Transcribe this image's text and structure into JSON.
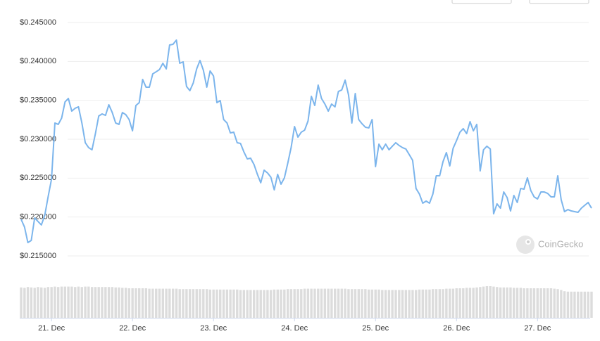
{
  "chart_data": {
    "type": "line",
    "watermark": "CoinGecko",
    "color": "#7cb5ec",
    "volume_color": "#dcdcdc",
    "grid": true,
    "xlim": [
      20.625,
      27.667
    ],
    "xticks": [
      {
        "value": 21,
        "label": "21. Dec"
      },
      {
        "value": 22,
        "label": "22. Dec"
      },
      {
        "value": 23,
        "label": "23. Dec"
      },
      {
        "value": 24,
        "label": "24. Dec"
      },
      {
        "value": 25,
        "label": "25. Dec"
      },
      {
        "value": 26,
        "label": "26. Dec"
      },
      {
        "value": 27,
        "label": "27. Dec"
      }
    ],
    "ylim": [
      0.215,
      0.245
    ],
    "yticks": [
      {
        "value": 0.245,
        "label": "$0.245000"
      },
      {
        "value": 0.24,
        "label": "$0.240000"
      },
      {
        "value": 0.235,
        "label": "$0.235000"
      },
      {
        "value": 0.23,
        "label": "$0.230000"
      },
      {
        "value": 0.225,
        "label": "$0.225000"
      },
      {
        "value": 0.22,
        "label": "$0.220000"
      },
      {
        "value": 0.215,
        "label": "$0.215000"
      }
    ],
    "x": [
      20.625,
      20.667,
      20.708,
      20.75,
      20.792,
      20.833,
      20.875,
      20.917,
      20.958,
      21,
      21.042,
      21.083,
      21.125,
      21.167,
      21.208,
      21.25,
      21.292,
      21.333,
      21.375,
      21.417,
      21.458,
      21.5,
      21.542,
      21.583,
      21.625,
      21.667,
      21.708,
      21.75,
      21.792,
      21.833,
      21.875,
      21.917,
      21.958,
      22,
      22.042,
      22.083,
      22.125,
      22.167,
      22.208,
      22.25,
      22.292,
      22.333,
      22.375,
      22.417,
      22.458,
      22.5,
      22.542,
      22.583,
      22.625,
      22.667,
      22.708,
      22.75,
      22.792,
      22.833,
      22.875,
      22.917,
      22.958,
      23,
      23.042,
      23.083,
      23.125,
      23.167,
      23.208,
      23.25,
      23.292,
      23.333,
      23.375,
      23.417,
      23.458,
      23.5,
      23.542,
      23.583,
      23.625,
      23.667,
      23.708,
      23.75,
      23.792,
      23.833,
      23.875,
      23.917,
      23.958,
      24,
      24.042,
      24.083,
      24.125,
      24.167,
      24.208,
      24.25,
      24.292,
      24.333,
      24.375,
      24.417,
      24.458,
      24.5,
      24.542,
      24.583,
      24.625,
      24.667,
      24.708,
      24.75,
      24.792,
      24.833,
      24.875,
      24.917,
      24.958,
      25,
      25.042,
      25.083,
      25.125,
      25.167,
      25.208,
      25.25,
      25.292,
      25.333,
      25.375,
      25.417,
      25.458,
      25.5,
      25.542,
      25.583,
      25.625,
      25.667,
      25.708,
      25.75,
      25.792,
      25.833,
      25.875,
      25.917,
      25.958,
      26,
      26.042,
      26.083,
      26.125,
      26.167,
      26.208,
      26.25,
      26.292,
      26.333,
      26.375,
      26.417,
      26.458,
      26.5,
      26.542,
      26.583,
      26.625,
      26.667,
      26.708,
      26.75,
      26.792,
      26.833,
      26.875,
      26.917,
      26.958,
      27,
      27.042,
      27.083,
      27.125,
      27.167,
      27.208,
      27.25,
      27.292,
      27.333,
      27.375,
      27.417,
      27.458,
      27.5,
      27.542,
      27.583,
      27.625,
      27.667
    ],
    "values": [
      0.2197,
      0.21871,
      0.21672,
      0.21699,
      0.21988,
      0.21943,
      0.21898,
      0.22024,
      0.22259,
      0.22485,
      0.23208,
      0.2319,
      0.23271,
      0.23479,
      0.23524,
      0.23361,
      0.23398,
      0.23416,
      0.23208,
      0.22955,
      0.22892,
      0.22864,
      0.23072,
      0.23298,
      0.23325,
      0.23307,
      0.23443,
      0.23343,
      0.23208,
      0.2319,
      0.23343,
      0.23316,
      0.23253,
      0.23108,
      0.23434,
      0.2347,
      0.23768,
      0.23669,
      0.23669,
      0.2384,
      0.23867,
      0.23895,
      0.23976,
      0.23904,
      0.24211,
      0.2422,
      0.24274,
      0.23976,
      0.23994,
      0.23678,
      0.23624,
      0.23723,
      0.23904,
      0.24012,
      0.23886,
      0.23669,
      0.23877,
      0.23813,
      0.2347,
      0.23497,
      0.23253,
      0.23208,
      0.23081,
      0.2309,
      0.22955,
      0.22946,
      0.22837,
      0.22747,
      0.22756,
      0.22675,
      0.22548,
      0.2244,
      0.22602,
      0.22566,
      0.22512,
      0.22349,
      0.22548,
      0.22422,
      0.22503,
      0.22693,
      0.22892,
      0.23163,
      0.23027,
      0.2309,
      0.23117,
      0.23235,
      0.23551,
      0.23434,
      0.23696,
      0.23524,
      0.23452,
      0.23361,
      0.23452,
      0.23416,
      0.23614,
      0.23633,
      0.23759,
      0.23569,
      0.23208,
      0.23587,
      0.23253,
      0.23199,
      0.23154,
      0.23145,
      0.23253,
      0.22648,
      0.22937,
      0.22864,
      0.22937,
      0.22864,
      0.2291,
      0.22955,
      0.22919,
      0.22892,
      0.22874,
      0.22801,
      0.22729,
      0.22367,
      0.22295,
      0.22178,
      0.22205,
      0.22178,
      0.22295,
      0.2253,
      0.2253,
      0.22711,
      0.22828,
      0.22657,
      0.22883,
      0.22982,
      0.2309,
      0.23136,
      0.23072,
      0.23226,
      0.23108,
      0.2319,
      0.22593,
      0.22864,
      0.2291,
      0.22874,
      0.22042,
      0.22169,
      0.22114,
      0.22322,
      0.2225,
      0.22078,
      0.22277,
      0.22187,
      0.22367,
      0.22358,
      0.22503,
      0.2234,
      0.22259,
      0.22232,
      0.22322,
      0.22322,
      0.22304,
      0.22259,
      0.22259,
      0.2253,
      0.22223,
      0.22069,
      0.22096,
      0.22078,
      0.22069,
      0.2206,
      0.22114,
      0.22151,
      0.22187,
      0.22114
    ],
    "volume_lim": [
      0,
      100
    ],
    "volumes": [
      72,
      71,
      73,
      72,
      71,
      73,
      72,
      71,
      73,
      73,
      74,
      73,
      74,
      74,
      74,
      74,
      73,
      74,
      73,
      74,
      74,
      73,
      73,
      73,
      73,
      73,
      73,
      73,
      72,
      72,
      71,
      71,
      70,
      70,
      70,
      70,
      70,
      70,
      69,
      69,
      69,
      69,
      69,
      69,
      69,
      69,
      69,
      68,
      68,
      68,
      68,
      68,
      68,
      68,
      68,
      68,
      67,
      67,
      67,
      67,
      67,
      67,
      67,
      67,
      67,
      66,
      66,
      66,
      66,
      66,
      66,
      66,
      66,
      66,
      66,
      67,
      67,
      67,
      67,
      68,
      68,
      68,
      68,
      68,
      69,
      69,
      69,
      69,
      69,
      69,
      69,
      69,
      69,
      69,
      69,
      69,
      69,
      68,
      68,
      68,
      68,
      68,
      68,
      67,
      67,
      67,
      67,
      66,
      66,
      66,
      66,
      66,
      66,
      66,
      66,
      66,
      66,
      66,
      67,
      67,
      67,
      67,
      68,
      68,
      68,
      68,
      69,
      69,
      69,
      70,
      70,
      70,
      71,
      71,
      71,
      72,
      73,
      74,
      75,
      75,
      74,
      73,
      72,
      72,
      72,
      72,
      71,
      71,
      71,
      70,
      70,
      70,
      70,
      70,
      70,
      70,
      70,
      70,
      69,
      68,
      66,
      63,
      62,
      62,
      62,
      62,
      62,
      62,
      62,
      62
    ]
  }
}
